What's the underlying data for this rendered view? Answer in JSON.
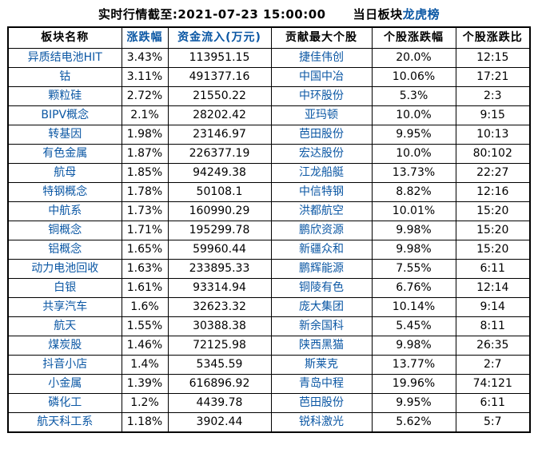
{
  "title": {
    "timestamp_label": "实时行情截至:2021-07-23 15:00:00",
    "board_label": "当日板块",
    "board_link": "龙虎榜"
  },
  "colors": {
    "link_blue": "#0b57a4",
    "text_black": "#000000",
    "border_black": "#000000",
    "background": "#ffffff"
  },
  "table": {
    "headers": [
      {
        "label": "板块名称",
        "style": "black"
      },
      {
        "label": "涨跌幅",
        "style": "blue"
      },
      {
        "label": "资金流入(万元)",
        "style": "blue"
      },
      {
        "label": "贡献最大个股",
        "style": "black"
      },
      {
        "label": "个股涨跌幅",
        "style": "black"
      },
      {
        "label": "个股涨跌比",
        "style": "black"
      }
    ],
    "rows": [
      {
        "sector": "异质结电池HIT",
        "change": "3.43%",
        "inflow": "113951.15",
        "stock": "捷佳伟创",
        "stock_change": "20.0%",
        "ratio": "12:15"
      },
      {
        "sector": "钴",
        "change": "3.11%",
        "inflow": "491377.16",
        "stock": "中国中冶",
        "stock_change": "10.06%",
        "ratio": "17:21"
      },
      {
        "sector": "颗粒硅",
        "change": "2.72%",
        "inflow": "21550.22",
        "stock": "中环股份",
        "stock_change": "5.3%",
        "ratio": "2:3"
      },
      {
        "sector": "BIPV概念",
        "change": "2.1%",
        "inflow": "28202.42",
        "stock": "亚玛顿",
        "stock_change": "10.0%",
        "ratio": "9:15"
      },
      {
        "sector": "转基因",
        "change": "1.98%",
        "inflow": "23146.97",
        "stock": "芭田股份",
        "stock_change": "9.95%",
        "ratio": "10:13"
      },
      {
        "sector": "有色金属",
        "change": "1.87%",
        "inflow": "226377.19",
        "stock": "宏达股份",
        "stock_change": "10.0%",
        "ratio": "80:102"
      },
      {
        "sector": "航母",
        "change": "1.85%",
        "inflow": "94249.38",
        "stock": "江龙船艇",
        "stock_change": "13.73%",
        "ratio": "22:27"
      },
      {
        "sector": "特钢概念",
        "change": "1.78%",
        "inflow": "50108.1",
        "stock": "中信特钢",
        "stock_change": "8.82%",
        "ratio": "12:16"
      },
      {
        "sector": "中航系",
        "change": "1.73%",
        "inflow": "160990.29",
        "stock": "洪都航空",
        "stock_change": "10.01%",
        "ratio": "15:20"
      },
      {
        "sector": "铜概念",
        "change": "1.71%",
        "inflow": "195299.78",
        "stock": "鹏欣资源",
        "stock_change": "9.98%",
        "ratio": "15:20"
      },
      {
        "sector": "铝概念",
        "change": "1.65%",
        "inflow": "59960.44",
        "stock": "新疆众和",
        "stock_change": "9.98%",
        "ratio": "15:20"
      },
      {
        "sector": "动力电池回收",
        "change": "1.63%",
        "inflow": "233895.33",
        "stock": "鹏辉能源",
        "stock_change": "7.55%",
        "ratio": "6:11"
      },
      {
        "sector": "白银",
        "change": "1.61%",
        "inflow": "93314.94",
        "stock": "铜陵有色",
        "stock_change": "6.76%",
        "ratio": "12:14"
      },
      {
        "sector": "共享汽车",
        "change": "1.6%",
        "inflow": "32623.32",
        "stock": "庞大集团",
        "stock_change": "10.14%",
        "ratio": "9:14"
      },
      {
        "sector": "航天",
        "change": "1.55%",
        "inflow": "30388.38",
        "stock": "新余国科",
        "stock_change": "5.45%",
        "ratio": "8:11"
      },
      {
        "sector": "煤炭股",
        "change": "1.46%",
        "inflow": "72125.98",
        "stock": "陕西黑猫",
        "stock_change": "9.98%",
        "ratio": "26:35"
      },
      {
        "sector": "抖音小店",
        "change": "1.4%",
        "inflow": "5345.59",
        "stock": "斯莱克",
        "stock_change": "13.77%",
        "ratio": "2:7"
      },
      {
        "sector": "小金属",
        "change": "1.39%",
        "inflow": "616896.92",
        "stock": "青岛中程",
        "stock_change": "19.96%",
        "ratio": "74:121"
      },
      {
        "sector": "磷化工",
        "change": "1.2%",
        "inflow": "4439.78",
        "stock": "芭田股份",
        "stock_change": "9.95%",
        "ratio": "6:11"
      },
      {
        "sector": "航天科工系",
        "change": "1.18%",
        "inflow": "3902.44",
        "stock": "锐科激光",
        "stock_change": "5.62%",
        "ratio": "5:7"
      }
    ]
  }
}
